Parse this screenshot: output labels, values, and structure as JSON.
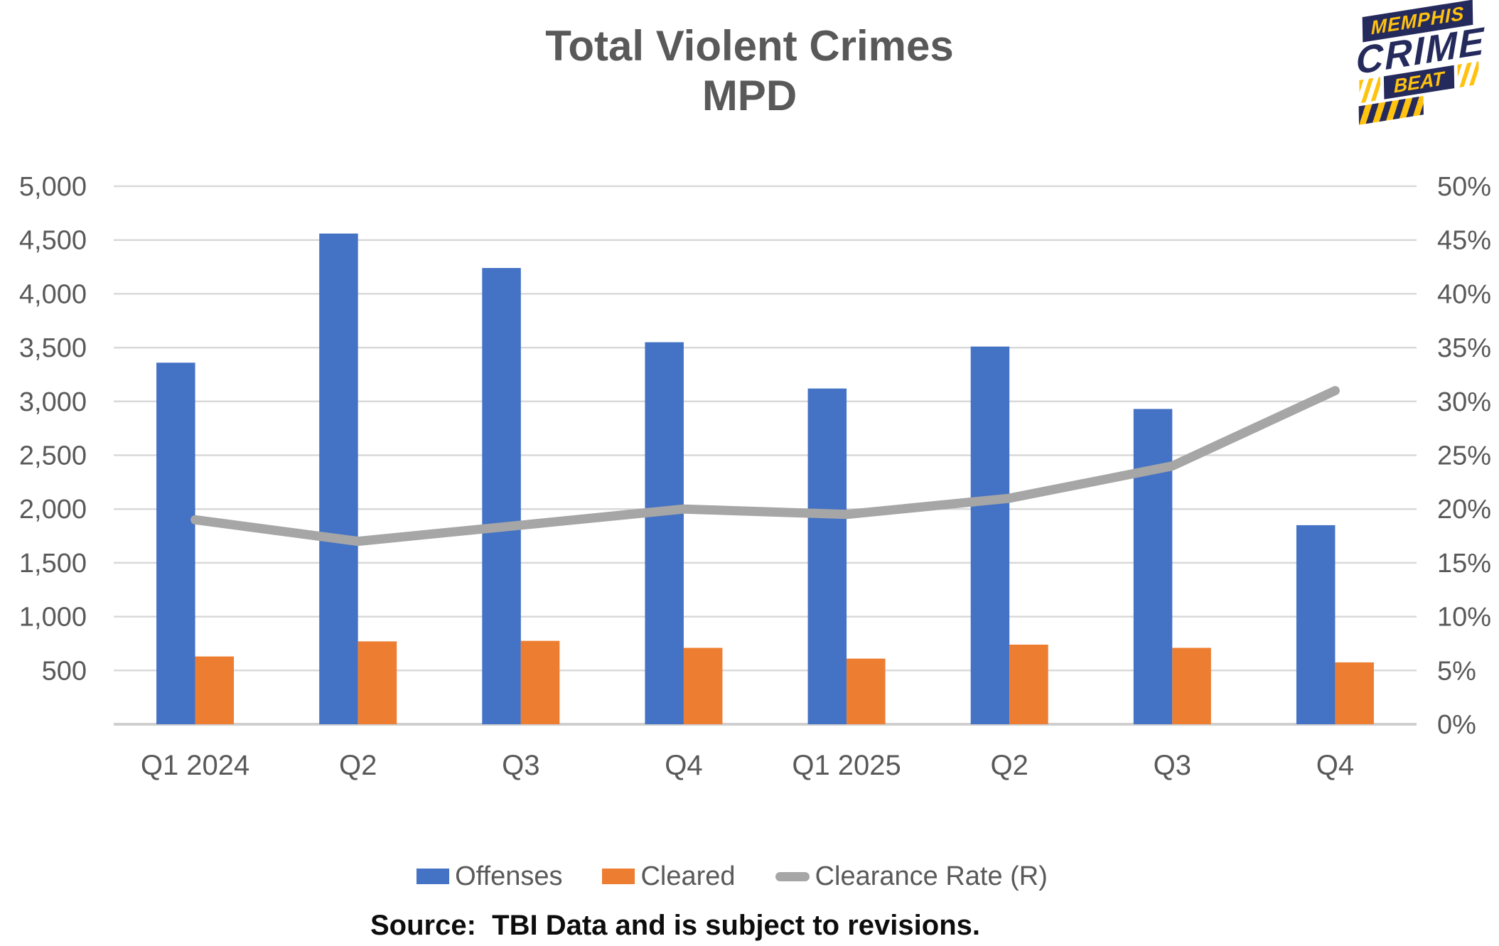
{
  "header": {
    "title_line1": "Total Violent Crimes",
    "title_line2": "MPD",
    "logo": {
      "line1": "MEMPHIS",
      "line2": "CRIME",
      "line3": "BEAT",
      "navy": "#252A5C",
      "yellow": "#FFC20E"
    }
  },
  "chart_data": {
    "type": "combo-bar-line",
    "title": "Total Violent Crimes MPD",
    "categories": [
      "Q1 2024",
      "Q2",
      "Q3",
      "Q4",
      "Q1 2025",
      "Q2",
      "Q3",
      "Q4"
    ],
    "series": [
      {
        "name": "Offenses",
        "type": "bar",
        "axis": "left",
        "color": "#4472C4",
        "values": [
          3360,
          4560,
          4240,
          3550,
          3120,
          3510,
          2930,
          1850
        ]
      },
      {
        "name": "Cleared",
        "type": "bar",
        "axis": "left",
        "color": "#ED7D31",
        "values": [
          630,
          770,
          775,
          710,
          610,
          740,
          710,
          575
        ]
      },
      {
        "name": "Clearance Rate (R)",
        "type": "line",
        "axis": "right",
        "color": "#A6A6A6",
        "values_pct": [
          19,
          17,
          18.5,
          20,
          19.5,
          21,
          24,
          31
        ]
      }
    ],
    "left_axis": {
      "min": 0,
      "max": 5000,
      "step": 500,
      "zero_label_shown": false,
      "tick_labels": [
        "500",
        "1,000",
        "1,500",
        "2,000",
        "2,500",
        "3,000",
        "3,500",
        "4,000",
        "4,500",
        "5,000"
      ]
    },
    "right_axis": {
      "min": 0,
      "max": 50,
      "step": 5,
      "tick_labels": [
        "0%",
        "5%",
        "10%",
        "15%",
        "20%",
        "25%",
        "30%",
        "35%",
        "40%",
        "45%",
        "50%"
      ]
    },
    "grid": true,
    "gridline_color": "#D9D9D9",
    "axis_text_color": "#595959",
    "legend_position": "bottom"
  },
  "legend": {
    "items": [
      {
        "label": "Offenses",
        "color": "#4472C4",
        "shape": "rect"
      },
      {
        "label": "Cleared",
        "color": "#ED7D31",
        "shape": "rect"
      },
      {
        "label": "Clearance Rate (R)",
        "color": "#A6A6A6",
        "shape": "line"
      }
    ]
  },
  "footer": {
    "source": "Source:  TBI Data and is subject to revisions."
  }
}
